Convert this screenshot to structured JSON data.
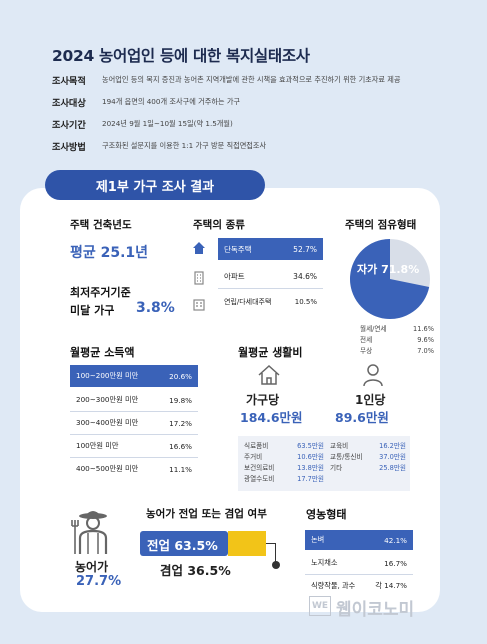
{
  "title": "2024 농어업인 등에 대한 복지실태조사",
  "meta": [
    {
      "key": "조사목적",
      "value": "농어업인 등의 복지 증진과 농어촌 지역개발에 관한 시책을 효과적으로 추진하기 위한 기초자료 제공"
    },
    {
      "key": "조사대상",
      "value": "194개 읍면의 400개 조사구에 거주하는 가구"
    },
    {
      "key": "조사기간",
      "value": "2024년 9월 1일~10월 15일(약 1.5개월)"
    },
    {
      "key": "조사방법",
      "value": "구조화된 설문지를 이용한 1:1 가구 방문 직접면접조사"
    }
  ],
  "section_title": "제1부 가구 조사 결과",
  "building_year": {
    "heading": "주택 건축년도",
    "value": "평균 25.1년"
  },
  "min_housing": {
    "heading_line1": "최저주거기준",
    "heading_line2": "미달 가구",
    "value": "3.8%"
  },
  "house_type": {
    "heading": "주택의 종류",
    "items": [
      {
        "label": "단독주택",
        "value": "52.7%"
      },
      {
        "label": "아파트",
        "value": "34.6%"
      },
      {
        "label": "연립/다세대주택",
        "value": "10.5%"
      }
    ]
  },
  "tenure": {
    "heading": "주택의 점유형태",
    "main_label": "자가 71.8%",
    "main_share": 71.8,
    "others": [
      {
        "label": "월세/연세",
        "value": "11.6%"
      },
      {
        "label": "전세",
        "value": "9.6%"
      },
      {
        "label": "무상",
        "value": "7.0%"
      }
    ],
    "colors": {
      "main": "#3a62b8",
      "other": "#d8dee8"
    }
  },
  "income": {
    "heading": "월평균 소득액",
    "rows": [
      {
        "label": "100~200만원 미만",
        "value": "20.6%"
      },
      {
        "label": "200~300만원 미만",
        "value": "19.8%"
      },
      {
        "label": "300~400만원 미만",
        "value": "17.2%"
      },
      {
        "label": "100만원 미만",
        "value": "16.6%"
      },
      {
        "label": "400~500만원 미만",
        "value": "11.1%"
      }
    ]
  },
  "living": {
    "heading": "월평균 생활비",
    "household_label": "가구당",
    "household_value": "184.6만원",
    "person_label": "1인당",
    "person_value": "89.6만원",
    "breakdown_left": [
      {
        "label": "식료품비",
        "value": "63.5만원"
      },
      {
        "label": "주거비",
        "value": "10.6만원"
      },
      {
        "label": "보건의료비",
        "value": "13.8만원"
      },
      {
        "label": "광열수도비",
        "value": "17.7만원"
      }
    ],
    "breakdown_right": [
      {
        "label": "교육비",
        "value": "16.2만원"
      },
      {
        "label": "교통/통신비",
        "value": "37.0만원"
      },
      {
        "label": "기타",
        "value": "25.8만원"
      }
    ]
  },
  "farm_household": {
    "label": "농어가",
    "value": "27.7%"
  },
  "fulltime": {
    "heading": "농어가 전업 또는 겸업 여부",
    "fulltime_label": "전업 63.5%",
    "fulltime_share": 63.5,
    "parttime_label": "겸업 36.5%",
    "color": "#f2c418"
  },
  "farming": {
    "heading": "영농형태",
    "rows": [
      {
        "label": "논벼",
        "value": "42.1%"
      },
      {
        "label": "노지채소",
        "value": "16.7%"
      },
      {
        "label": "식량작물, 과수",
        "value": "각 14.7%"
      }
    ]
  },
  "watermark": {
    "text": "웹이코노미",
    "badge": "WE"
  }
}
